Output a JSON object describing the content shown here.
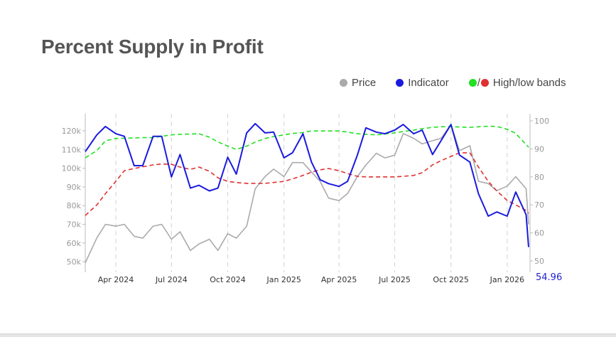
{
  "title": "Percent Supply in Profit",
  "legend": {
    "price": "Price",
    "indicator": "Indicator",
    "bands": "High/low bands",
    "slash": "/"
  },
  "colors": {
    "price": "#aaaaaa",
    "indicator": "#1a1adf",
    "high_band": "#22e022",
    "low_band": "#e03030",
    "last_value": "#2222cc"
  },
  "chart_data": {
    "type": "line",
    "title": "Percent Supply in Profit",
    "x_ticks": [
      "2024-04-01",
      "2024-07-01",
      "2024-10-01",
      "2025-01-01",
      "2025-04-01",
      "2025-07-01",
      "2025-10-01",
      "2026-01-01"
    ],
    "x_tick_labels": [
      "Apr 2024",
      "Jul 2024",
      "Oct 2024",
      "Jan 2025",
      "Apr 2025",
      "Jul 2025",
      "Oct 2025",
      "Jan 2026"
    ],
    "x_range": [
      "2024-02-11",
      "2026-02-05"
    ],
    "y_left": {
      "range": [
        48,
        126
      ],
      "ticks": [
        50,
        60,
        70,
        80,
        90,
        100,
        110,
        120
      ],
      "tick_labels": [
        "50k",
        "60k",
        "70k",
        "80k",
        "90k",
        "100k",
        "110k",
        "120k"
      ]
    },
    "y_right": {
      "range": [
        47,
        102
      ],
      "ticks": [
        50,
        60,
        70,
        80,
        90,
        100
      ],
      "tick_labels": [
        "50",
        "60",
        "70",
        "80",
        "90",
        "100"
      ]
    },
    "grid": "vertical dashed at x ticks",
    "legend_position": "top-right",
    "last_value_label": "54.96",
    "x": [
      "2024-02-11",
      "2024-03-01",
      "2024-03-15",
      "2024-04-01",
      "2024-04-15",
      "2024-05-01",
      "2024-05-15",
      "2024-06-01",
      "2024-06-15",
      "2024-07-01",
      "2024-07-15",
      "2024-08-01",
      "2024-08-15",
      "2024-09-01",
      "2024-09-15",
      "2024-10-01",
      "2024-10-15",
      "2024-11-01",
      "2024-11-15",
      "2024-12-01",
      "2024-12-15",
      "2025-01-01",
      "2025-01-15",
      "2025-02-01",
      "2025-02-15",
      "2025-03-01",
      "2025-03-15",
      "2025-04-01",
      "2025-04-15",
      "2025-05-01",
      "2025-05-15",
      "2025-06-01",
      "2025-06-15",
      "2025-07-01",
      "2025-07-15",
      "2025-08-01",
      "2025-08-15",
      "2025-09-01",
      "2025-09-15",
      "2025-10-01",
      "2025-10-15",
      "2025-11-01",
      "2025-11-15",
      "2025-12-01",
      "2025-12-15",
      "2026-01-01",
      "2026-01-15",
      "2026-02-01",
      "2026-02-05"
    ],
    "series": [
      {
        "name": "Price",
        "axis": "left",
        "unit": "k",
        "values": [
          49.4,
          62.7,
          70,
          69,
          70,
          63.6,
          62.6,
          69,
          70,
          62,
          66,
          56,
          59.5,
          62,
          56,
          65,
          62.6,
          69,
          89,
          95.5,
          99.5,
          95.5,
          103,
          103,
          98,
          93,
          84,
          82.7,
          86.5,
          95.5,
          101.7,
          108,
          105.5,
          107,
          118.5,
          116,
          113,
          114.7,
          116,
          123.4,
          109.4,
          112,
          93,
          91.8,
          88,
          90.4,
          95.5,
          89,
          70
        ]
      },
      {
        "name": "Indicator",
        "axis": "right",
        "values": [
          89,
          95,
          98,
          95.4,
          94.5,
          84,
          84,
          94.5,
          94.5,
          80,
          88,
          76,
          77,
          75,
          76,
          87,
          81,
          95.7,
          99,
          95.7,
          96,
          86.8,
          88.6,
          95.4,
          85.3,
          79,
          77.6,
          76.6,
          78.4,
          87.8,
          97.5,
          96,
          95.4,
          96.7,
          98.7,
          95.4,
          96.7,
          88,
          93,
          98.7,
          87.8,
          85.3,
          74,
          66,
          67.5,
          66,
          74.6,
          66.5,
          54.96
        ]
      },
      {
        "name": "High band",
        "axis": "right",
        "dashed": true,
        "values": [
          86.8,
          89.4,
          92.9,
          93.7,
          93.8,
          93.9,
          94,
          94,
          94.5,
          95,
          95.2,
          95.3,
          95.4,
          94.2,
          92.5,
          91,
          89.8,
          91,
          92.4,
          93.7,
          94.4,
          95,
          95.5,
          95.8,
          96.4,
          96.4,
          96.4,
          96.4,
          96,
          95.4,
          95.2,
          95,
          95.3,
          95.7,
          96.2,
          96.7,
          97.2,
          97.7,
          97.9,
          98,
          97.8,
          97.7,
          97.9,
          98.1,
          98,
          97,
          95.5,
          91.5,
          90.6
        ]
      },
      {
        "name": "Low band",
        "axis": "right",
        "dashed": true,
        "values": [
          66.2,
          70,
          74,
          78.4,
          82.2,
          83,
          83.6,
          84.3,
          84.6,
          84.5,
          83.5,
          82.7,
          83.5,
          82,
          79.7,
          78.4,
          78,
          77.7,
          77.7,
          77.7,
          78,
          78.4,
          79.3,
          80.5,
          81.7,
          82.5,
          83,
          82.2,
          81.2,
          80.2,
          80,
          80,
          80,
          80,
          80.2,
          80.5,
          81.5,
          84.3,
          85.8,
          87.3,
          88.6,
          88.6,
          83.5,
          78.4,
          75,
          71.6,
          70,
          68,
          67
        ]
      }
    ]
  }
}
